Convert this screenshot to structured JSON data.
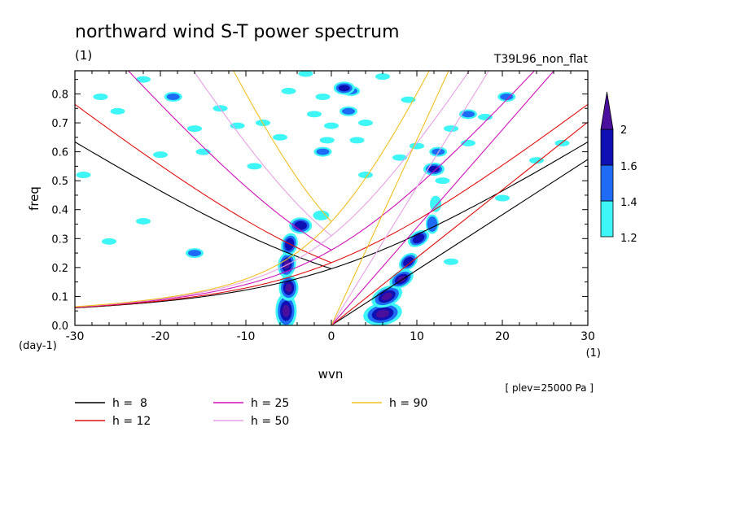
{
  "chart_data": {
    "type": "contour",
    "title": "northward wind S-T power spectrum",
    "subtitle_left": "(1)",
    "subtitle_right": "T39L96_non_flat",
    "xlabel": "wvn",
    "ylabel": "freq",
    "x_unit": "(1)",
    "y_unit": "(day-1)",
    "xlim": [
      -30,
      30
    ],
    "ylim": [
      0,
      0.88
    ],
    "x_ticks": [
      -30,
      -20,
      -10,
      0,
      10,
      20,
      30
    ],
    "y_ticks": [
      0.0,
      0.1,
      0.2,
      0.3,
      0.4,
      0.5,
      0.6,
      0.7,
      0.8
    ],
    "annotation": "[ plev=25000 Pa ]",
    "colorbar": {
      "levels": [
        "1.2",
        "1.4",
        "1.6",
        "2"
      ],
      "colors": [
        "#3ff6f6",
        "#1e6cf5",
        "#0f10b4",
        "#4a0f9c"
      ]
    },
    "legend": [
      {
        "label": "h =  8",
        "color": "#000000"
      },
      {
        "label": "h = 12",
        "color": "#e01010"
      },
      {
        "label": "h = 25",
        "color": "#d010b8"
      },
      {
        "label": "h = 50",
        "color": "#e6a0e6"
      },
      {
        "label": "h = 90",
        "color": "#f0c020"
      }
    ],
    "dispersion_curves": {
      "equivalent_depths_m": [
        8,
        12,
        25,
        50,
        90
      ],
      "families": [
        "equatorial Rossby-gravity / inertia-gravity (n=0)",
        "Kelvin"
      ]
    },
    "power_regions": [
      {
        "x": -5,
        "y": 0.08,
        "level": 2
      },
      {
        "x": -5,
        "y": 0.2,
        "level": 2
      },
      {
        "x": -4,
        "y": 0.34,
        "level": 1.6
      },
      {
        "x": 6,
        "y": 0.06,
        "level": 2
      },
      {
        "x": 9,
        "y": 0.2,
        "level": 1.6
      },
      {
        "x": 11,
        "y": 0.3,
        "level": 1.6
      },
      {
        "x": -1,
        "y": 0.6,
        "level": 1.6
      },
      {
        "x": 2,
        "y": 0.8,
        "level": 1.6
      }
    ]
  }
}
